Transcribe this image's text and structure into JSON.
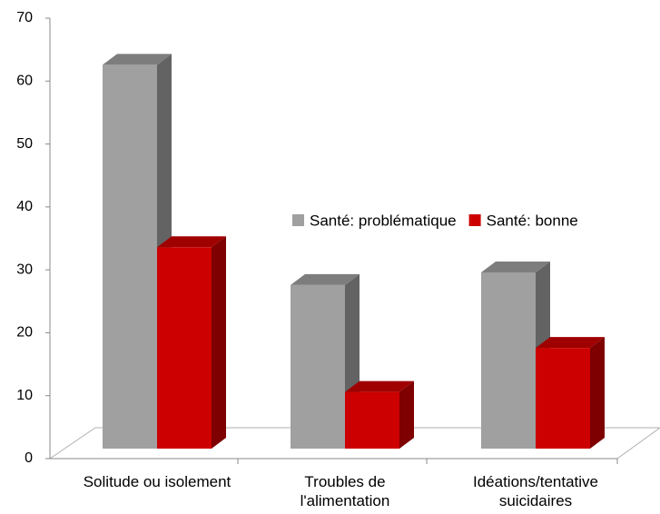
{
  "chart_data": {
    "type": "bar3d",
    "categories": [
      "Solitude ou isolement",
      "Troubles de l'alimentation",
      "Idéations/tentative suicidaires"
    ],
    "series": [
      {
        "name": "Santé: problématique",
        "color": "#a0a0a0",
        "values": [
          61,
          26,
          28
        ]
      },
      {
        "name": "Santé: bonne",
        "color": "#cc0000",
        "values": [
          32,
          9,
          16
        ]
      }
    ],
    "ylim": [
      0,
      70
    ],
    "yticks": [
      0,
      10,
      20,
      30,
      40,
      50,
      60,
      70
    ]
  }
}
